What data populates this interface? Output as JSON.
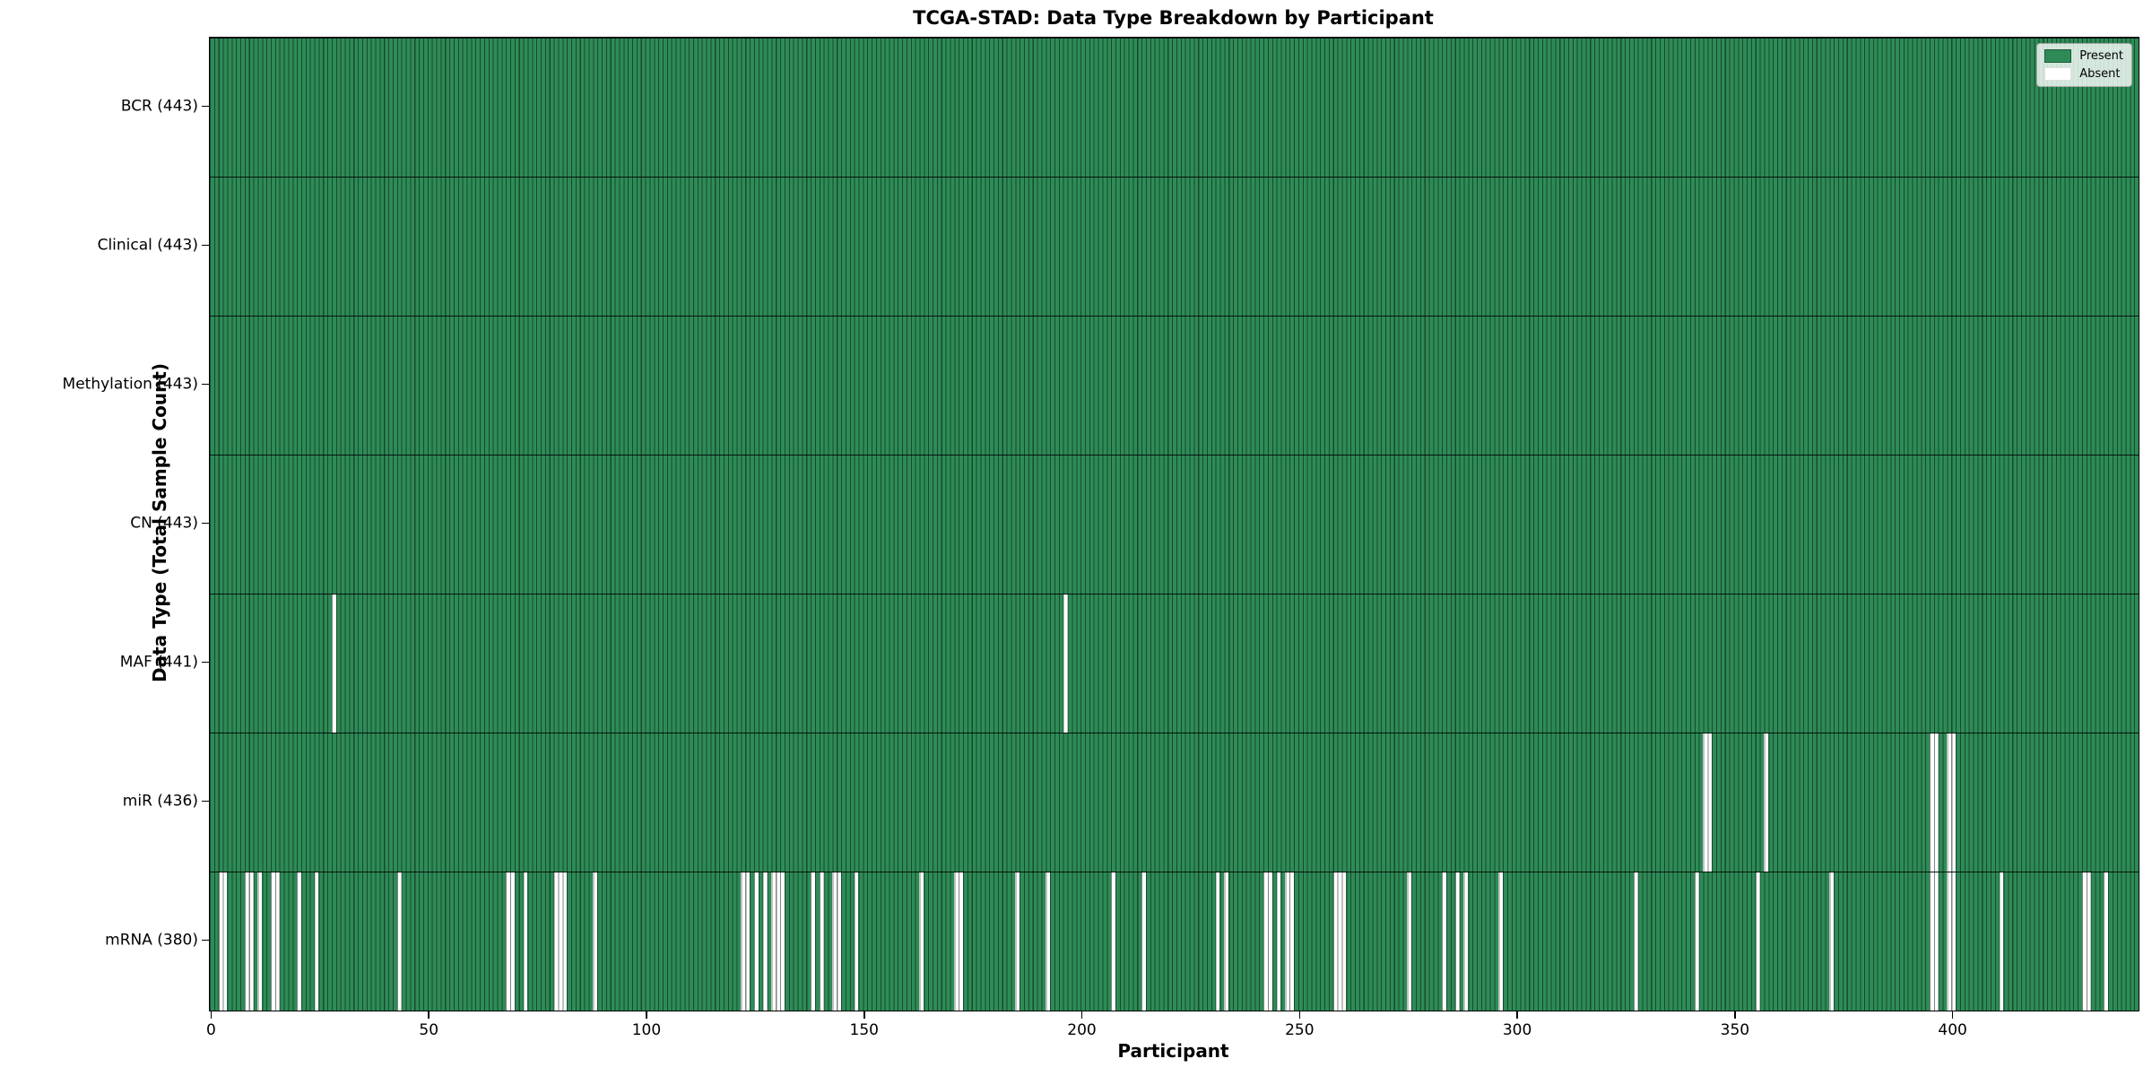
{
  "chart_data": {
    "type": "heatmap",
    "title": "TCGA-STAD: Data Type Breakdown by Participant",
    "xlabel": "Participant",
    "ylabel": "Data Type (Total Sample Count)",
    "n_participants": 443,
    "x_ticks": [
      0,
      50,
      100,
      150,
      200,
      250,
      300,
      350,
      400
    ],
    "legend_position": "upper right",
    "colors": {
      "present": "#2E8B57",
      "absent": "#FFFFFF",
      "bar_edge": "#123822",
      "plot_border": "#000000"
    },
    "legend": [
      {
        "label": "Present",
        "color": "#2E8B57"
      },
      {
        "label": "Absent",
        "color": "#FFFFFF"
      }
    ],
    "rows": [
      {
        "name": "BCR",
        "label": "BCR (443)",
        "total": 443,
        "absent": []
      },
      {
        "name": "Clinical",
        "label": "Clinical (443)",
        "total": 443,
        "absent": []
      },
      {
        "name": "Methylation",
        "label": "Methylation (443)",
        "total": 443,
        "absent": []
      },
      {
        "name": "CN",
        "label": "CN (443)",
        "total": 443,
        "absent": []
      },
      {
        "name": "MAF",
        "label": "MAF (441)",
        "total": 441,
        "absent": [
          28,
          196
        ]
      },
      {
        "name": "miR",
        "label": "miR (436)",
        "total": 436,
        "absent": [
          343,
          344,
          357,
          395,
          396,
          399,
          400
        ]
      },
      {
        "name": "mRNA",
        "label": "mRNA (380)",
        "total": 380,
        "absent": [
          2,
          3,
          8,
          9,
          11,
          14,
          15,
          20,
          24,
          43,
          68,
          69,
          72,
          79,
          80,
          81,
          88,
          122,
          123,
          125,
          127,
          129,
          130,
          131,
          138,
          140,
          143,
          144,
          148,
          163,
          171,
          172,
          185,
          192,
          207,
          214,
          231,
          233,
          242,
          243,
          245,
          247,
          248,
          258,
          259,
          260,
          275,
          283,
          286,
          288,
          296,
          327,
          341,
          355,
          372,
          395,
          396,
          399,
          400,
          411,
          430,
          431,
          435
        ]
      }
    ]
  }
}
